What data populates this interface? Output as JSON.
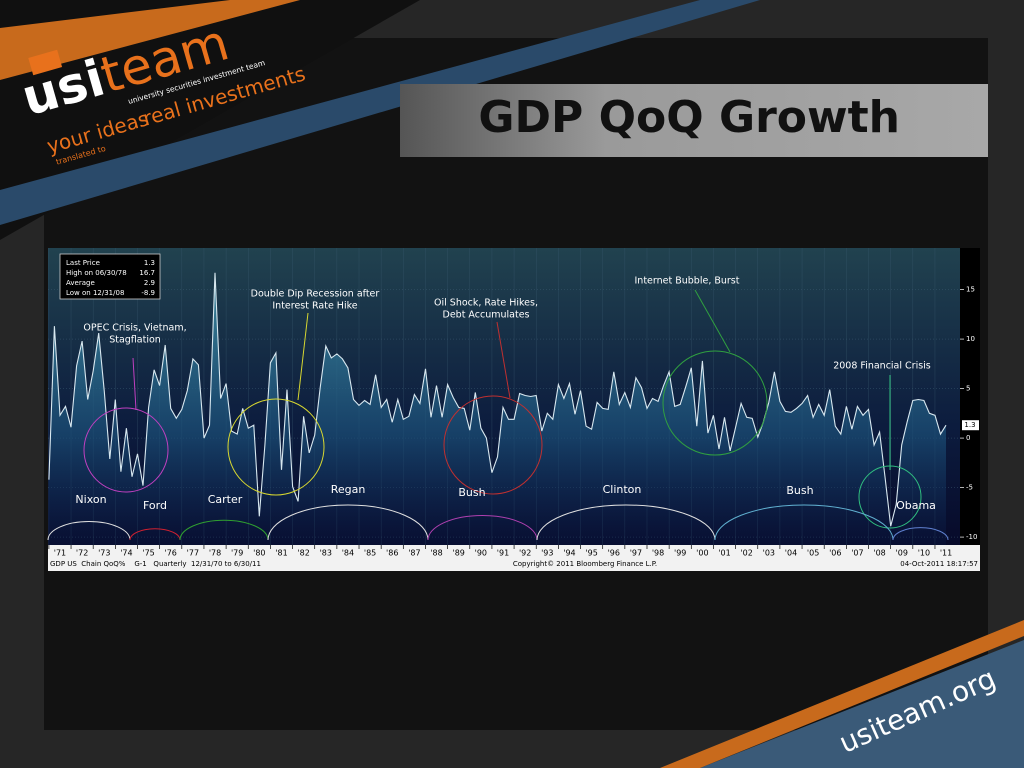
{
  "logo": {
    "usi": "usi",
    "team": "team",
    "tagline": "university securities investment team",
    "line1": "your ideas",
    "line2": "translated to",
    "line3": "real investments"
  },
  "slide_title": "GDP QoQ Growth",
  "footer": "usiteam.org",
  "chart_data": {
    "type": "area",
    "legend_box": [
      {
        "label": "Last Price",
        "value": "1.3"
      },
      {
        "label": "High on 06/30/78",
        "value": "16.7"
      },
      {
        "label": "Average",
        "value": "2.9"
      },
      {
        "label": "Low on 12/31/08",
        "value": "-8.9"
      }
    ],
    "series": [
      {
        "name": "GDP US Chain QoQ%",
        "color": "#d8e8f0",
        "x": [
          1971,
          1971.25,
          1971.5,
          1971.75,
          1972,
          1972.25,
          1972.5,
          1972.75,
          1973,
          1973.25,
          1973.5,
          1973.75,
          1974,
          1974.25,
          1974.5,
          1974.75,
          1975,
          1975.25,
          1975.5,
          1975.75,
          1976,
          1976.25,
          1976.5,
          1976.75,
          1977,
          1977.25,
          1977.5,
          1977.75,
          1978,
          1978.25,
          1978.5,
          1978.75,
          1979,
          1979.25,
          1979.5,
          1979.75,
          1980,
          1980.25,
          1980.5,
          1980.75,
          1981,
          1981.25,
          1981.5,
          1981.75,
          1982,
          1982.25,
          1982.5,
          1982.75,
          1983,
          1983.25,
          1983.5,
          1983.75,
          1984,
          1984.25,
          1984.5,
          1984.75,
          1985,
          1985.25,
          1985.5,
          1985.75,
          1986,
          1986.25,
          1986.5,
          1986.75,
          1987,
          1987.25,
          1987.5,
          1987.75,
          1988,
          1988.25,
          1988.5,
          1988.75,
          1989,
          1989.25,
          1989.5,
          1989.75,
          1990,
          1990.25,
          1990.5,
          1990.75,
          1991,
          1991.25,
          1991.5,
          1991.75,
          1992,
          1992.25,
          1992.5,
          1992.75,
          1993,
          1993.25,
          1993.5,
          1993.75,
          1994,
          1994.25,
          1994.5,
          1994.75,
          1995,
          1995.25,
          1995.5,
          1995.75,
          1996,
          1996.25,
          1996.5,
          1996.75,
          1997,
          1997.25,
          1997.5,
          1997.75,
          1998,
          1998.25,
          1998.5,
          1998.75,
          1999,
          1999.25,
          1999.5,
          1999.75,
          2000,
          2000.25,
          2000.5,
          2000.75,
          2001,
          2001.25,
          2001.5,
          2001.75,
          2002,
          2002.25,
          2002.5,
          2002.75,
          2003,
          2003.25,
          2003.5,
          2003.75,
          2004,
          2004.25,
          2004.5,
          2004.75,
          2005,
          2005.25,
          2005.5,
          2005.75,
          2006,
          2006.25,
          2006.5,
          2006.75,
          2007,
          2007.25,
          2007.5,
          2007.75,
          2008,
          2008.25,
          2008.5,
          2008.75,
          2009,
          2009.25,
          2009.5,
          2009.75,
          2010,
          2010.25,
          2010.5,
          2010.75,
          2011,
          2011.25,
          2011.5
        ],
        "values": [
          -4.2,
          11.3,
          2.3,
          3.2,
          1.1,
          7.3,
          9.8,
          3.9,
          6.8,
          10.6,
          4.7,
          -2.1,
          3.9,
          -3.4,
          1.0,
          -3.9,
          -1.6,
          -4.8,
          3.1,
          6.9,
          5.3,
          9.4,
          3.0,
          2.0,
          2.9,
          4.8,
          8.0,
          7.4,
          0.0,
          1.3,
          16.7,
          4.0,
          5.5,
          0.7,
          0.4,
          3.0,
          1.0,
          1.3,
          -7.9,
          -0.7,
          7.6,
          8.6,
          -3.2,
          4.9,
          -4.9,
          -6.4,
          2.2,
          -1.5,
          0.3,
          5.1,
          9.3,
          8.1,
          8.5,
          8.0,
          7.1,
          3.9,
          3.3,
          3.8,
          3.4,
          6.4,
          3.1,
          3.9,
          1.6,
          3.9,
          1.9,
          2.2,
          4.4,
          3.5,
          7.0,
          2.1,
          5.3,
          2.1,
          5.4,
          4.1,
          3.1,
          3.0,
          0.8,
          4.6,
          1.0,
          0.0,
          -3.5,
          -1.9,
          3.1,
          1.9,
          1.9,
          4.5,
          4.3,
          4.2,
          4.3,
          0.7,
          2.5,
          1.9,
          5.4,
          4.0,
          5.5,
          2.4,
          4.8,
          1.2,
          0.9,
          3.6,
          3.0,
          2.9,
          6.7,
          3.4,
          4.6,
          3.1,
          6.1,
          5.1,
          3.0,
          4.0,
          3.7,
          5.3,
          6.7,
          3.2,
          3.4,
          5.2,
          7.1,
          1.2,
          7.8,
          0.5,
          2.3,
          -1.1,
          2.1,
          -1.3,
          1.1,
          3.5,
          2.1,
          2.0,
          0.1,
          1.6,
          3.6,
          6.7,
          3.7,
          2.7,
          2.6,
          3.0,
          3.5,
          4.3,
          2.1,
          3.4,
          2.3,
          4.9,
          1.2,
          0.4,
          3.2,
          0.9,
          3.2,
          2.3,
          2.9,
          -0.7,
          0.6,
          -4.0,
          -8.9,
          -6.7,
          -0.7,
          1.7,
          3.8,
          3.9,
          3.8,
          2.5,
          2.3,
          0.4,
          1.3
        ]
      }
    ],
    "xlim": [
      1970.96,
      2012.13
    ],
    "xticks": [
      {
        "value": 1971,
        "label": "'71"
      },
      {
        "value": 1972,
        "label": "'72"
      },
      {
        "value": 1973,
        "label": "'73"
      },
      {
        "value": 1974,
        "label": "'74"
      },
      {
        "value": 1975,
        "label": "'75"
      },
      {
        "value": 1976,
        "label": "'76"
      },
      {
        "value": 1977,
        "label": "'77"
      },
      {
        "value": 1978,
        "label": "'78"
      },
      {
        "value": 1979,
        "label": "'79"
      },
      {
        "value": 1980,
        "label": "'80"
      },
      {
        "value": 1981,
        "label": "'81"
      },
      {
        "value": 1982,
        "label": "'82"
      },
      {
        "value": 1983,
        "label": "'83"
      },
      {
        "value": 1984,
        "label": "'84"
      },
      {
        "value": 1985,
        "label": "'85"
      },
      {
        "value": 1986,
        "label": "'86"
      },
      {
        "value": 1987,
        "label": "'87"
      },
      {
        "value": 1988,
        "label": "'88"
      },
      {
        "value": 1989,
        "label": "'89"
      },
      {
        "value": 1990,
        "label": "'90"
      },
      {
        "value": 1991,
        "label": "'91"
      },
      {
        "value": 1992,
        "label": "'92"
      },
      {
        "value": 1993,
        "label": "'93"
      },
      {
        "value": 1994,
        "label": "'94"
      },
      {
        "value": 1995,
        "label": "'95"
      },
      {
        "value": 1996,
        "label": "'96"
      },
      {
        "value": 1997,
        "label": "'97"
      },
      {
        "value": 1998,
        "label": "'98"
      },
      {
        "value": 1999,
        "label": "'99"
      },
      {
        "value": 2000,
        "label": "'00"
      },
      {
        "value": 2001,
        "label": "'01"
      },
      {
        "value": 2002,
        "label": "'02"
      },
      {
        "value": 2003,
        "label": "'03"
      },
      {
        "value": 2004,
        "label": "'04"
      },
      {
        "value": 2005,
        "label": "'05"
      },
      {
        "value": 2006,
        "label": "'06"
      },
      {
        "value": 2007,
        "label": "'07"
      },
      {
        "value": 2008,
        "label": "'08"
      },
      {
        "value": 2009,
        "label": "'09"
      },
      {
        "value": 2010,
        "label": "'10"
      },
      {
        "value": 2011,
        "label": "'11"
      }
    ],
    "ylim": [
      -10.8,
      19.2
    ],
    "yticks": [
      -10,
      -5,
      0,
      5,
      10,
      15
    ],
    "grid": true,
    "annotations": [
      {
        "lines": [
          "OPEC Crisis, Vietnam,",
          "Stagflation"
        ],
        "color": "#c040c0"
      },
      {
        "lines": [
          "Double Dip Recession after",
          "Interest Rate Hike"
        ],
        "color": "#d8d830"
      },
      {
        "lines": [
          "Oil Shock, Rate Hikes,",
          "Debt Accumulates"
        ],
        "color": "#c03030"
      },
      {
        "lines": [
          "Internet Bubble, Burst"
        ],
        "color": "#30a040"
      },
      {
        "lines": [
          "2008 Financial Crisis"
        ],
        "color": "#30c080"
      }
    ],
    "presidents": [
      {
        "name": "Nixon",
        "color": "#e0e0e0"
      },
      {
        "name": "Ford",
        "color": "#d02030"
      },
      {
        "name": "Carter",
        "color": "#30a030"
      },
      {
        "name": "Regan",
        "color": "#e0e0e0"
      },
      {
        "name": "Bush",
        "color": "#b040b0"
      },
      {
        "name": "Clinton",
        "color": "#e0e0e0"
      },
      {
        "name": "Bush",
        "color": "#60b0d0"
      },
      {
        "name": "Obama",
        "color": "#6080d0"
      }
    ],
    "footer_left": "GDP US  Chain QoQ%    G-1   Quarterly  12/31/70 to 6/30/11",
    "copyright": "Copyright© 2011 Bloomberg Finance L.P.",
    "timestamp": "04-Oct-2011 18:17:57"
  }
}
